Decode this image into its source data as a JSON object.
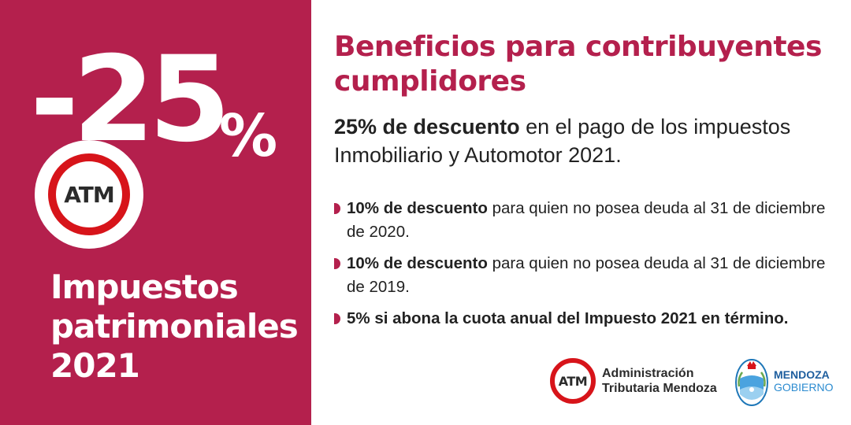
{
  "promo": {
    "discount_number": "-25",
    "discount_symbol": "%",
    "badge_text": "ATM",
    "title_lines": [
      "Impuestos",
      "patrimoniales",
      "2021"
    ]
  },
  "content": {
    "heading": "Beneficios para contribuyentes cumplidores",
    "intro_bold": "25% de descuento",
    "intro_rest": " en el pago de los impuestos Inmobiliario y Automotor 2021.",
    "bullets": [
      {
        "bold": "10% de descuento",
        "rest": " para quien no posea deuda al 31 de diciembre de 2020."
      },
      {
        "bold": "10% de descuento",
        "rest": " para quien no posea deuda al 31 de diciembre de 2019."
      },
      {
        "bold": "5% si abona la cuota anual del Impuesto 2021 en término.",
        "rest": ""
      }
    ]
  },
  "footer": {
    "atm_logo": "ATM",
    "atm_line1": "Administración",
    "atm_line2": "Tributaria Mendoza",
    "mendoza_line1": "MENDOZA",
    "mendoza_line2": "GOBIERNO"
  },
  "colors": {
    "brand_crimson": "#b4204d",
    "atm_red": "#d7141a",
    "mendoza_blue": "#1e77b8"
  },
  "icons": [
    "atm-logo-icon",
    "mendoza-coat-of-arms-icon",
    "bullet-marker-icon"
  ]
}
